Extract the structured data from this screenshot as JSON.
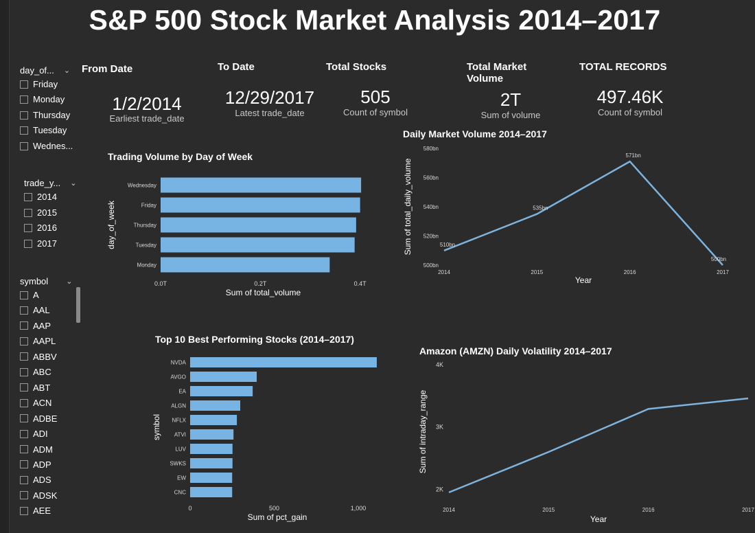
{
  "title": "S&P 500 Stock Market Analysis 2014–2017",
  "slicers": {
    "day_of_week": {
      "header": "day_of...",
      "items": [
        "Friday",
        "Monday",
        "Thursday",
        "Tuesday",
        "Wednes..."
      ]
    },
    "trade_year": {
      "header": "trade_y...",
      "items": [
        "2014",
        "2015",
        "2016",
        "2017"
      ]
    },
    "symbol": {
      "header": "symbol",
      "items": [
        "A",
        "AAL",
        "AAP",
        "AAPL",
        "ABBV",
        "ABC",
        "ABT",
        "ACN",
        "ADBE",
        "ADI",
        "ADM",
        "ADP",
        "ADS",
        "ADSK",
        "AEE"
      ]
    }
  },
  "kpis": {
    "from_date": {
      "label": "From Date",
      "value": "1/2/2014",
      "sub": "Earliest trade_date"
    },
    "to_date": {
      "label": "To Date",
      "value": "12/29/2017",
      "sub": "Latest trade_date"
    },
    "total_stocks": {
      "label": "Total Stocks",
      "value": "505",
      "sub": "Count of symbol"
    },
    "total_market_volume": {
      "label1": "Total Market",
      "label2": "Volume",
      "value": "2T",
      "sub": "Sum of volume"
    },
    "total_records": {
      "label": "TOTAL RECORDS",
      "value": "497.46K",
      "sub": "Count of symbol"
    }
  },
  "colors": {
    "bar": "#77b3e3",
    "line": "#7db3dc",
    "background": "#2b2b2c"
  },
  "chart_data": [
    {
      "id": "volume_by_day",
      "type": "bar",
      "orientation": "horizontal",
      "title": "Trading Volume by Day of Week",
      "xlabel": "Sum of total_volume",
      "ylabel": "day_of_week",
      "categories": [
        "Wednesday",
        "Friday",
        "Thursday",
        "Tuesday",
        "Monday"
      ],
      "values": [
        0.402,
        0.4,
        0.392,
        0.389,
        0.339
      ],
      "xlim": [
        0,
        0.45
      ],
      "xticks": [
        0,
        0.2,
        0.4
      ],
      "xtick_labels": [
        "0.0T",
        "0.2T",
        "0.4T"
      ]
    },
    {
      "id": "daily_market_volume",
      "type": "line",
      "title": "Daily Market Volume 2014–2017",
      "xlabel": "Year",
      "ylabel": "Sum of total_daily_volume",
      "x": [
        "2014",
        "2015",
        "2016",
        "2017"
      ],
      "values": [
        510,
        535,
        571,
        500
      ],
      "data_labels": [
        "510bn",
        "535bn",
        "571bn",
        "500bn"
      ],
      "ylim": [
        500,
        580
      ],
      "yticks": [
        500,
        520,
        540,
        560,
        580
      ],
      "ytick_labels": [
        "500bn",
        "520bn",
        "540bn",
        "560bn",
        "580bn"
      ]
    },
    {
      "id": "top10_stocks",
      "type": "bar",
      "orientation": "horizontal",
      "title": "Top 10 Best Performing Stocks (2014–2017)",
      "xlabel": "Sum of pct_gain",
      "ylabel": "symbol",
      "categories": [
        "NVDA",
        "AVGO",
        "EA",
        "ALGN",
        "NFLX",
        "ATVI",
        "LUV",
        "SWKS",
        "EW",
        "CNC"
      ],
      "values": [
        1110,
        396,
        372,
        298,
        278,
        258,
        252,
        252,
        250,
        250
      ],
      "xlim": [
        0,
        1200
      ],
      "xticks": [
        0,
        500,
        1000
      ],
      "xtick_labels": [
        "0",
        "500",
        "1,000"
      ]
    },
    {
      "id": "amzn_volatility",
      "type": "line",
      "title": "Amazon (AMZN) Daily Volatility 2014–2017",
      "xlabel": "Year",
      "ylabel": "Sum of intraday_range",
      "x": [
        "2014",
        "2015",
        "2016",
        "2017"
      ],
      "values": [
        1950,
        2600,
        3290,
        3460
      ],
      "ylim": [
        1850,
        4000
      ],
      "yticks": [
        2000,
        3000,
        4000
      ],
      "ytick_labels": [
        "2K",
        "3K",
        "4K"
      ]
    }
  ]
}
